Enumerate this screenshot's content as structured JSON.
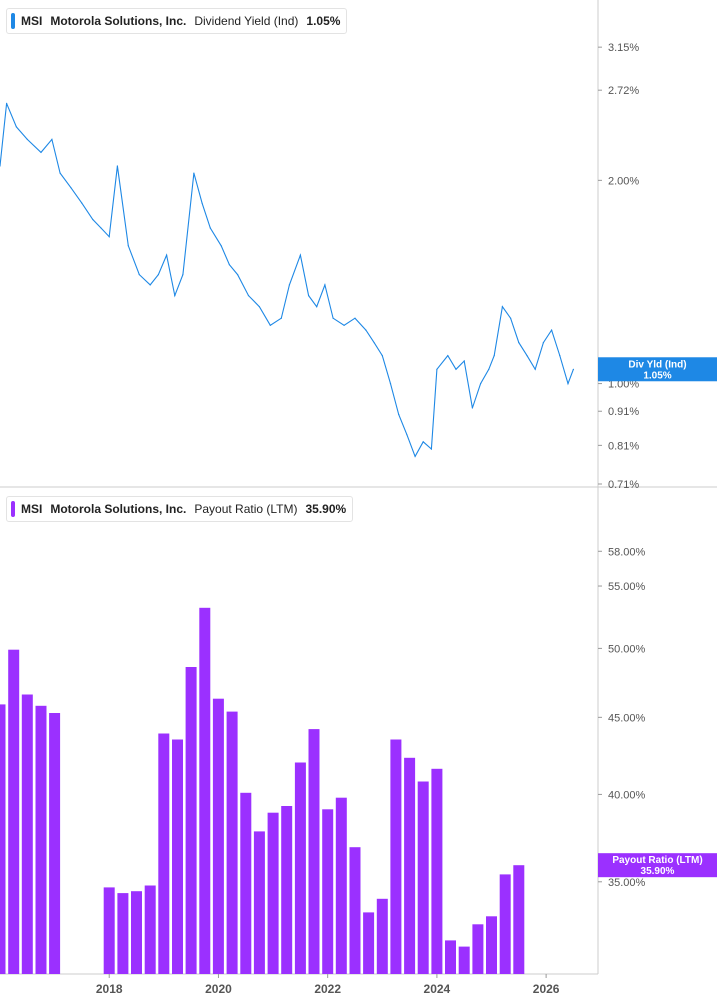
{
  "top_legend": {
    "ticker": "MSI",
    "company": "Motorola Solutions, Inc.",
    "metric": "Dividend Yield (Ind)",
    "value": "1.05%"
  },
  "bottom_legend": {
    "ticker": "MSI",
    "company": "Motorola Solutions, Inc.",
    "metric": "Payout Ratio (LTM)",
    "value": "35.90%"
  },
  "colors": {
    "yield_line": "#1e88e5",
    "payout_bar": "#9b30ff",
    "axis_line": "#cccccc"
  },
  "chart_data": [
    {
      "type": "line",
      "title": "Dividend Yield (Ind)",
      "scale": "log",
      "y_ticks": [
        "3.15%",
        "2.72%",
        "2.00%",
        "1.00%",
        "0.91%",
        "0.81%",
        "0.71%"
      ],
      "y_tick_values": [
        3.15,
        2.72,
        2.0,
        1.0,
        0.91,
        0.81,
        0.71
      ],
      "ylim": [
        0.71,
        3.6
      ],
      "xlim": [
        2016.0,
        2026.95
      ],
      "current_label": "Div Yld (Ind)",
      "current_value": "1.05%",
      "series": [
        {
          "name": "Dividend Yield (Ind)",
          "points": [
            [
              2016.0,
              2.1
            ],
            [
              2016.12,
              2.6
            ],
            [
              2016.3,
              2.4
            ],
            [
              2016.5,
              2.3
            ],
            [
              2016.75,
              2.2
            ],
            [
              2016.95,
              2.3
            ],
            [
              2017.1,
              2.05
            ],
            [
              2017.3,
              1.95
            ],
            [
              2017.5,
              1.85
            ],
            [
              2017.7,
              1.75
            ],
            [
              2017.85,
              1.7
            ],
            [
              2018.0,
              1.65
            ],
            [
              2018.15,
              2.1
            ],
            [
              2018.35,
              1.6
            ],
            [
              2018.55,
              1.45
            ],
            [
              2018.75,
              1.4
            ],
            [
              2018.9,
              1.45
            ],
            [
              2019.05,
              1.55
            ],
            [
              2019.2,
              1.35
            ],
            [
              2019.35,
              1.45
            ],
            [
              2019.55,
              2.05
            ],
            [
              2019.7,
              1.85
            ],
            [
              2019.85,
              1.7
            ],
            [
              2020.05,
              1.6
            ],
            [
              2020.2,
              1.5
            ],
            [
              2020.35,
              1.45
            ],
            [
              2020.55,
              1.35
            ],
            [
              2020.75,
              1.3
            ],
            [
              2020.95,
              1.22
            ],
            [
              2021.15,
              1.25
            ],
            [
              2021.3,
              1.4
            ],
            [
              2021.5,
              1.55
            ],
            [
              2021.65,
              1.35
            ],
            [
              2021.8,
              1.3
            ],
            [
              2021.95,
              1.4
            ],
            [
              2022.1,
              1.25
            ],
            [
              2022.3,
              1.22
            ],
            [
              2022.5,
              1.25
            ],
            [
              2022.7,
              1.2
            ],
            [
              2022.85,
              1.15
            ],
            [
              2023.0,
              1.1
            ],
            [
              2023.15,
              1.0
            ],
            [
              2023.3,
              0.9
            ],
            [
              2023.45,
              0.84
            ],
            [
              2023.6,
              0.78
            ],
            [
              2023.75,
              0.82
            ],
            [
              2023.9,
              0.8
            ],
            [
              2024.0,
              1.05
            ],
            [
              2024.2,
              1.1
            ],
            [
              2024.35,
              1.05
            ],
            [
              2024.5,
              1.08
            ],
            [
              2024.65,
              0.92
            ],
            [
              2024.8,
              1.0
            ],
            [
              2024.95,
              1.05
            ],
            [
              2025.05,
              1.1
            ],
            [
              2025.2,
              1.3
            ],
            [
              2025.35,
              1.25
            ],
            [
              2025.5,
              1.15
            ],
            [
              2025.65,
              1.1
            ],
            [
              2025.8,
              1.05
            ],
            [
              2025.95,
              1.15
            ],
            [
              2026.1,
              1.2
            ],
            [
              2026.25,
              1.1
            ],
            [
              2026.4,
              1.0
            ],
            [
              2026.5,
              1.05
            ]
          ]
        }
      ]
    },
    {
      "type": "bar",
      "title": "Payout Ratio (LTM)",
      "scale": "log",
      "y_ticks": [
        "58.00%",
        "55.00%",
        "50.00%",
        "45.00%",
        "40.00%",
        "35.00%"
      ],
      "y_tick_values": [
        58,
        55,
        50,
        45,
        40,
        35
      ],
      "ylim": [
        30.4,
        60.1
      ],
      "x_ticks": [
        "2018",
        "2020",
        "2022",
        "2024",
        "2026"
      ],
      "x_tick_values": [
        2018,
        2020,
        2022,
        2024,
        2026
      ],
      "xlim": [
        2016.0,
        2026.95
      ],
      "current_label": "Payout Ratio (LTM)",
      "current_value": "35.90%",
      "series": [
        {
          "name": "Payout Ratio (LTM)",
          "points": [
            [
              2016.0,
              45.9
            ],
            [
              2016.25,
              49.9
            ],
            [
              2016.5,
              46.6
            ],
            [
              2016.75,
              45.8
            ],
            [
              2017.0,
              45.3
            ],
            [
              2018.0,
              34.7
            ],
            [
              2018.25,
              34.4
            ],
            [
              2018.5,
              34.5
            ],
            [
              2018.75,
              34.8
            ],
            [
              2019.0,
              43.9
            ],
            [
              2019.25,
              43.5
            ],
            [
              2019.5,
              48.6
            ],
            [
              2019.75,
              53.2
            ],
            [
              2020.0,
              46.3
            ],
            [
              2020.25,
              45.4
            ],
            [
              2020.5,
              40.1
            ],
            [
              2020.75,
              37.8
            ],
            [
              2021.0,
              38.9
            ],
            [
              2021.25,
              39.3
            ],
            [
              2021.5,
              42.0
            ],
            [
              2021.75,
              44.2
            ],
            [
              2022.0,
              39.1
            ],
            [
              2022.25,
              39.8
            ],
            [
              2022.5,
              36.9
            ],
            [
              2022.75,
              33.4
            ],
            [
              2023.0,
              34.1
            ],
            [
              2023.25,
              43.5
            ],
            [
              2023.5,
              42.3
            ],
            [
              2023.75,
              40.8
            ],
            [
              2024.0,
              41.6
            ],
            [
              2024.25,
              32.0
            ],
            [
              2024.5,
              31.7
            ],
            [
              2024.75,
              32.8
            ],
            [
              2025.0,
              33.2
            ],
            [
              2025.25,
              35.4
            ],
            [
              2025.5,
              35.9
            ]
          ]
        }
      ]
    }
  ]
}
